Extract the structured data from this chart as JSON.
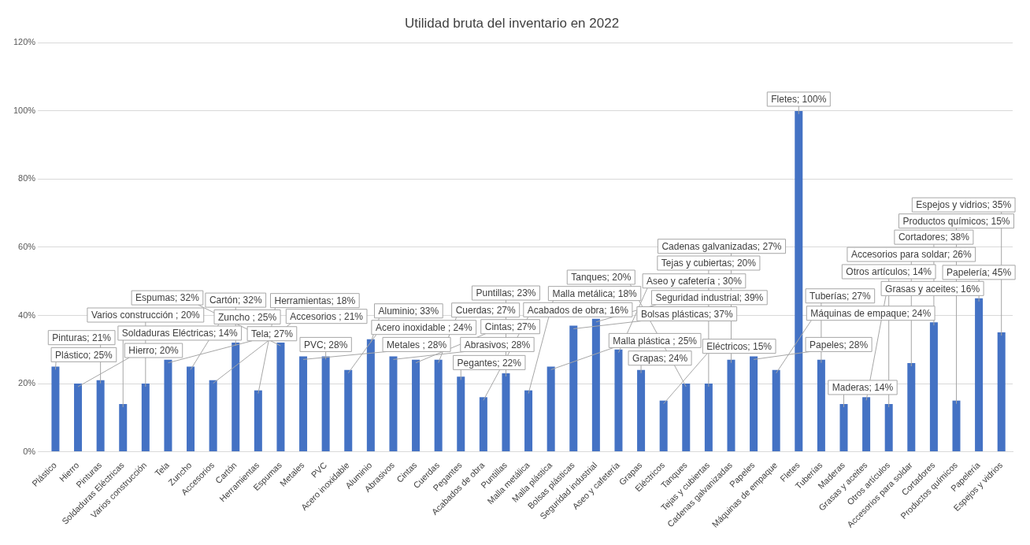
{
  "chart_data": {
    "type": "bar",
    "title": "Utilidad bruta del inventario en 2022",
    "categories": [
      "Plástico",
      "Hierro",
      "Pinturas",
      "Soldaduras Eléctricas",
      "Varios construcción",
      "Tela",
      "Zuncho",
      "Accesorios",
      "Cartón",
      "Herramientas",
      "Espumas",
      "Metales",
      "PVC",
      "Acero inoxidable",
      "Aluminio",
      "Abrasivos",
      "Cintas",
      "Cuerdas",
      "Pegantes",
      "Acabados de obra",
      "Puntillas",
      "Malla metálica",
      "Malla plástica",
      "Bolsas plásticas",
      "Seguridad industrial",
      "Aseo y cafetería",
      "Grapas",
      "Eléctricos",
      "Tanques",
      "Tejas y cubiertas",
      "Cadenas galvanizadas",
      "Papeles",
      "Máquinas de empaque",
      "Fletes",
      "Tuberías",
      "Maderas",
      "Grasas y aceites",
      "Otros artículos",
      "Accesorios para soldar",
      "Cortadores",
      "Productos químicos",
      "Papelería",
      "Espejos y vidrios"
    ],
    "values": [
      25,
      20,
      21,
      14,
      20,
      27,
      25,
      21,
      32,
      18,
      32,
      28,
      28,
      24,
      33,
      28,
      27,
      27,
      22,
      16,
      23,
      18,
      25,
      37,
      39,
      30,
      24,
      15,
      20,
      20,
      27,
      28,
      24,
      100,
      27,
      14,
      16,
      14,
      26,
      38,
      15,
      45,
      35
    ],
    "value_labels": [
      "Plástico; 25%",
      "Hierro; 20%",
      "Pinturas; 21%",
      "Soldaduras Eléctricas; 14%",
      "Varios construcción ; 20%",
      "Tela; 27%",
      "Zuncho ; 25%",
      "Accesorios ; 21%",
      "Cartón; 32%",
      "Herramientas; 18%",
      "Espumas; 32%",
      "Metales ; 28%",
      "PVC; 28%",
      "Acero inoxidable ; 24%",
      "Aluminio; 33%",
      "Abrasivos; 28%",
      "Cintas; 27%",
      "Cuerdas; 27%",
      "Pegantes; 22%",
      "Acabados de obra; 16%",
      "Puntillas; 23%",
      "Malla metálica; 18%",
      "Malla plástica ; 25%",
      "Bolsas plásticas; 37%",
      "Seguridad industrial; 39%",
      "Aseo y cafetería ; 30%",
      "Grapas; 24%",
      "Eléctricos; 15%",
      "Tanques; 20%",
      "Tejas y cubiertas; 20%",
      "Cadenas galvanizadas; 27%",
      "Papeles; 28%",
      "Máquinas de empaque; 24%",
      "Fletes; 100%",
      "Tuberías; 27%",
      "Maderas; 14%",
      "Grasas y aceites; 16%",
      "Otros artículos; 14%",
      "Accesorios para soldar; 26%",
      "Cortadores; 38%",
      "Productos químicos; 15%",
      "Papelería; 45%",
      "Espejos y vidrios; 35%"
    ],
    "color": "#4472c4",
    "ylim": [
      0,
      120
    ],
    "yticks": [
      {
        "value": 0,
        "label": "0%"
      },
      {
        "value": 20,
        "label": "20%"
      },
      {
        "value": 40,
        "label": "40%"
      },
      {
        "value": 60,
        "label": "60%"
      },
      {
        "value": 80,
        "label": "80%"
      },
      {
        "value": 100,
        "label": "100%"
      },
      {
        "value": 120,
        "label": "120%"
      }
    ],
    "grid": "y"
  }
}
